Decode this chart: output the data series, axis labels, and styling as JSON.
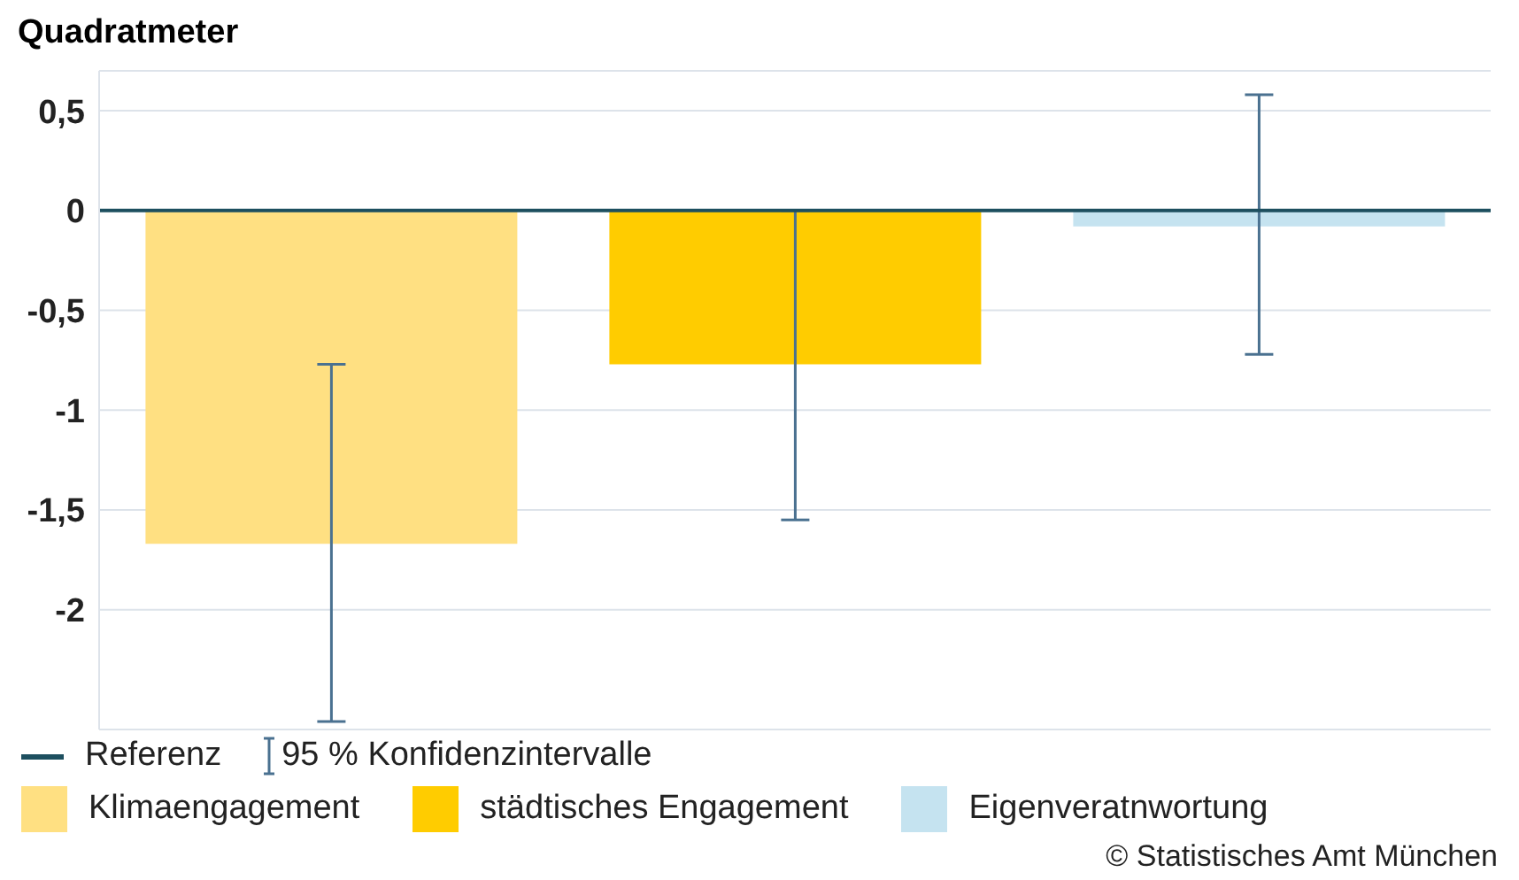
{
  "chart_data": {
    "type": "bar",
    "ylabel": "Quadratmeter",
    "categories": [
      null,
      null,
      null
    ],
    "stacked": true,
    "series": [
      {
        "name": "Klimaengagement",
        "color": "#ffe082",
        "values": [
          -1.67,
          null,
          null
        ],
        "errors": [
          [
            -2.56,
            -0.77
          ],
          null,
          null
        ]
      },
      {
        "name": "städtisches Engagement",
        "color": "#ffcc00",
        "values": [
          null,
          -0.77,
          null
        ],
        "errors": [
          null,
          [
            -1.55,
            0
          ],
          null
        ]
      },
      {
        "name": "Eigenveratnwortung",
        "color": "#c5e3f0",
        "values": [
          null,
          null,
          -0.08
        ],
        "errors": [
          null,
          null,
          [
            -0.72,
            0.58
          ]
        ]
      }
    ],
    "ylim": [
      -2.6,
      0.7
    ],
    "yticks": [
      {
        "value": 0.5,
        "label": "0,5"
      },
      0,
      {
        "value": -0.5,
        "label": "-0,5"
      },
      -1,
      {
        "value": -1.5,
        "label": "-1,5"
      },
      -2
    ],
    "ref_lines": [
      {
        "axis": "y",
        "value": 0,
        "label": "Referenz",
        "color": "#1d4f5f"
      }
    ],
    "grid": "y",
    "legend": "bottom",
    "tick_labels": "y",
    "annotations": [
      "95 % Konfidenzintervalle",
      "© Statistisches Amt München"
    ]
  }
}
